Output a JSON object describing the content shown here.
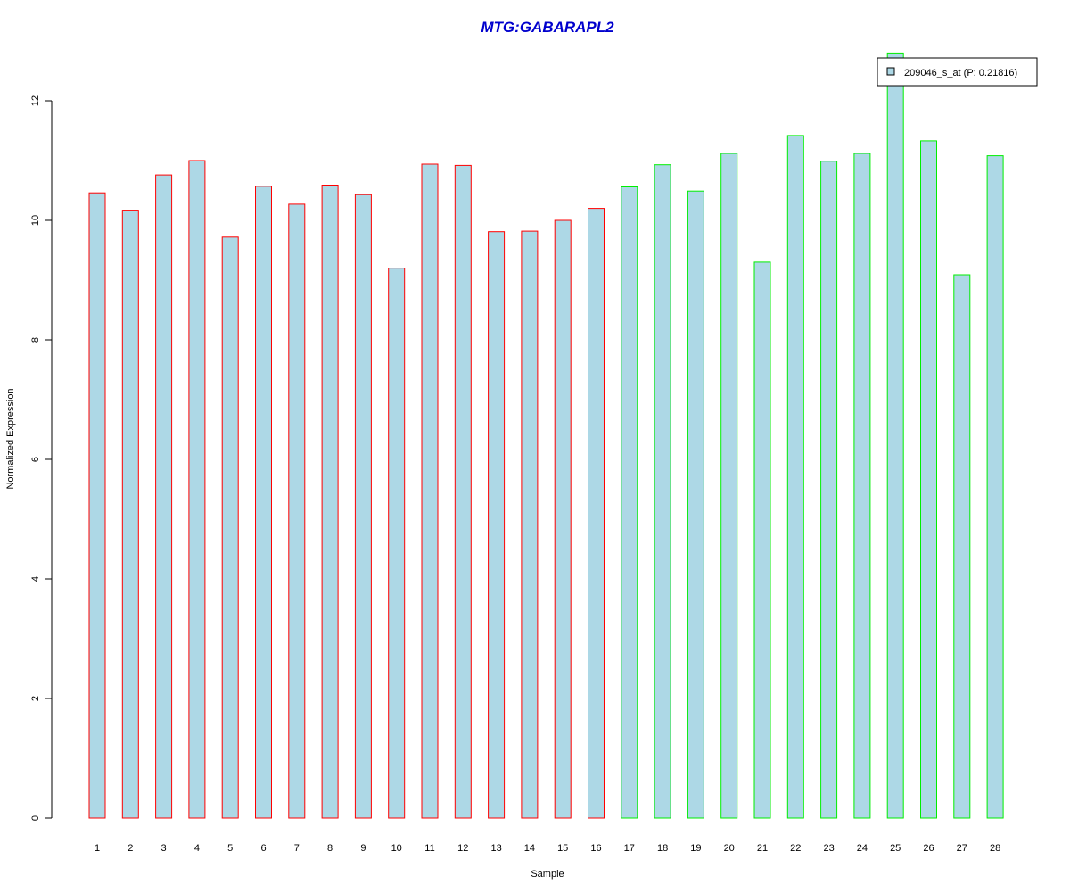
{
  "chart_data": {
    "type": "bar",
    "title": "MTG:GABARAPL2",
    "xlabel": "Sample",
    "ylabel": "Normalized Expression",
    "categories": [
      "1",
      "2",
      "3",
      "4",
      "5",
      "6",
      "7",
      "8",
      "9",
      "10",
      "11",
      "12",
      "13",
      "14",
      "15",
      "16",
      "17",
      "18",
      "19",
      "20",
      "21",
      "22",
      "23",
      "24",
      "25",
      "26",
      "27",
      "28"
    ],
    "series": [
      {
        "name": "209046_s_at (P: 0.21816)",
        "values": [
          10.46,
          10.17,
          10.76,
          11.0,
          9.72,
          10.57,
          10.27,
          10.59,
          10.43,
          9.2,
          10.94,
          10.92,
          9.81,
          9.82,
          10.0,
          10.2,
          10.56,
          10.93,
          10.49,
          11.12,
          9.3,
          11.42,
          10.99,
          11.12,
          12.8,
          11.33,
          9.09,
          11.08
        ]
      }
    ],
    "group_borders": [
      "#ff0000",
      "#ff0000",
      "#ff0000",
      "#ff0000",
      "#ff0000",
      "#ff0000",
      "#ff0000",
      "#ff0000",
      "#ff0000",
      "#ff0000",
      "#ff0000",
      "#ff0000",
      "#ff0000",
      "#ff0000",
      "#ff0000",
      "#ff0000",
      "#00ee00",
      "#00ee00",
      "#00ee00",
      "#00ee00",
      "#00ee00",
      "#00ee00",
      "#00ee00",
      "#00ee00",
      "#00ee00",
      "#00ee00",
      "#00ee00",
      "#00ee00"
    ],
    "bar_fill": "#add8e6",
    "title_color": "#0000cd",
    "y_ticks": [
      0,
      2,
      4,
      6,
      8,
      10,
      12
    ],
    "ylim": [
      0,
      12.8
    ],
    "grid": false,
    "legend_position": "top-right"
  }
}
